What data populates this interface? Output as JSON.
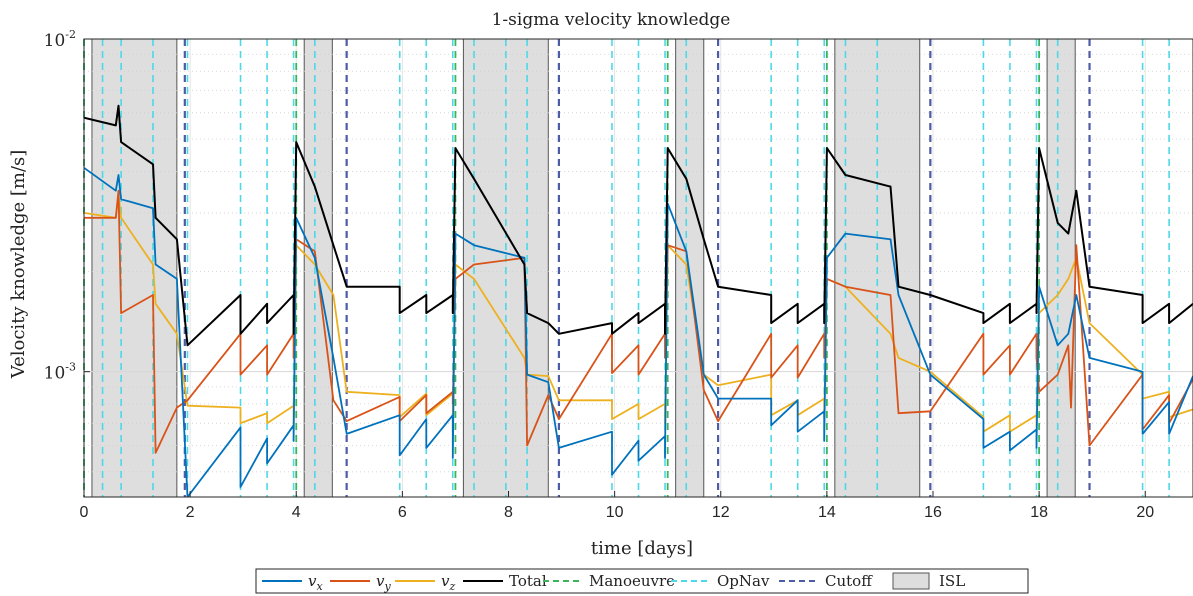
{
  "chart_data": {
    "type": "line",
    "title": "1-sigma velocity knowledge",
    "xlabel": "time [days]",
    "ylabel": "Velocity knowledge [m/s]",
    "x_ticks": [
      "0",
      "2",
      "4",
      "6",
      "8",
      "10",
      "12",
      "14",
      "16",
      "18",
      "20"
    ],
    "y_ticks": [
      {
        "base": "10",
        "exp": "-2",
        "value": 0.01
      },
      {
        "base": "10",
        "exp": "-3",
        "value": 0.001
      }
    ],
    "xlim": [
      0,
      20.9
    ],
    "ylim": [
      0.00042,
      0.01
    ],
    "y_scale": "log",
    "grid": true,
    "legend_position": "bottom-outside",
    "legend": [
      {
        "key": "vx",
        "label": "v",
        "sub": "x",
        "style": "line",
        "color": "#0072BD"
      },
      {
        "key": "vy",
        "label": "v",
        "sub": "y",
        "style": "line",
        "color": "#D95319"
      },
      {
        "key": "vz",
        "label": "v",
        "sub": "z",
        "style": "line",
        "color": "#EDB120"
      },
      {
        "key": "total",
        "label": "Total",
        "style": "line",
        "color": "#000000"
      },
      {
        "key": "manoeuvre",
        "label": "Manoeuvre",
        "style": "dashed",
        "color": "#3CB35A"
      },
      {
        "key": "opnav",
        "label": "OpNav",
        "style": "dashed",
        "color": "#4DD8E8"
      },
      {
        "key": "cutoff",
        "label": "Cutoff",
        "style": "dashed",
        "color": "#4E5BA6"
      },
      {
        "key": "isl",
        "label": "ISL",
        "style": "patch",
        "color": "#DEDEDE"
      }
    ],
    "isl_intervals": [
      [
        0.15,
        1.75
      ],
      [
        4.15,
        4.68
      ],
      [
        7.15,
        8.75
      ],
      [
        11.15,
        11.68
      ],
      [
        14.15,
        15.75
      ],
      [
        18.15,
        18.68
      ]
    ],
    "manoeuvre_times": [
      0.0,
      4.0,
      7.0,
      11.0,
      14.0,
      18.0
    ],
    "cutoff_times": [
      1.9,
      4.95,
      8.95,
      11.95,
      15.95,
      18.95
    ],
    "opnav_times": [
      0.0,
      0.35,
      0.7,
      1.3,
      1.95,
      2.95,
      3.45,
      3.95,
      4.35,
      4.95,
      5.95,
      6.45,
      6.95,
      7.35,
      7.95,
      8.35,
      8.95,
      9.95,
      10.45,
      10.95,
      11.35,
      11.95,
      12.95,
      13.45,
      13.95,
      14.35,
      14.95,
      15.95,
      16.95,
      17.45,
      17.95,
      18.35,
      18.95,
      19.95,
      20.45
    ],
    "series": [
      {
        "name": "Total",
        "color": "#000000",
        "points": [
          [
            0.0,
            0.0058
          ],
          [
            0.6,
            0.0055
          ],
          [
            0.65,
            0.0063
          ],
          [
            0.7,
            0.0049
          ],
          [
            1.3,
            0.0042
          ],
          [
            1.35,
            0.0029
          ],
          [
            1.75,
            0.0025
          ],
          [
            1.95,
            0.0012
          ],
          [
            2.95,
            0.0017
          ],
          [
            2.95,
            0.0013
          ],
          [
            3.45,
            0.0016
          ],
          [
            3.45,
            0.0014
          ],
          [
            3.95,
            0.0017
          ],
          [
            3.95,
            0.0013
          ],
          [
            4.0,
            0.0049
          ],
          [
            4.35,
            0.0036
          ],
          [
            4.7,
            0.0024
          ],
          [
            4.95,
            0.0018
          ],
          [
            5.95,
            0.0018
          ],
          [
            5.95,
            0.0015
          ],
          [
            6.45,
            0.0017
          ],
          [
            6.45,
            0.0015
          ],
          [
            6.95,
            0.0017
          ],
          [
            6.95,
            0.0015
          ],
          [
            7.0,
            0.0047
          ],
          [
            7.35,
            0.0038
          ],
          [
            8.3,
            0.0021
          ],
          [
            8.35,
            0.0015
          ],
          [
            8.75,
            0.0014
          ],
          [
            8.95,
            0.0013
          ],
          [
            9.95,
            0.0014
          ],
          [
            9.95,
            0.0013
          ],
          [
            10.45,
            0.0015
          ],
          [
            10.45,
            0.0014
          ],
          [
            10.95,
            0.0016
          ],
          [
            10.95,
            0.0013
          ],
          [
            11.0,
            0.0047
          ],
          [
            11.35,
            0.0038
          ],
          [
            11.68,
            0.0025
          ],
          [
            11.95,
            0.0018
          ],
          [
            12.95,
            0.0017
          ],
          [
            12.95,
            0.0014
          ],
          [
            13.45,
            0.0016
          ],
          [
            13.45,
            0.0014
          ],
          [
            13.95,
            0.0016
          ],
          [
            13.95,
            0.0014
          ],
          [
            14.0,
            0.0047
          ],
          [
            14.35,
            0.0039
          ],
          [
            15.2,
            0.0036
          ],
          [
            15.35,
            0.0018
          ],
          [
            15.95,
            0.0017
          ],
          [
            16.95,
            0.0015
          ],
          [
            16.95,
            0.0014
          ],
          [
            17.45,
            0.0016
          ],
          [
            17.45,
            0.0014
          ],
          [
            17.95,
            0.0016
          ],
          [
            17.95,
            0.0015
          ],
          [
            18.0,
            0.0047
          ],
          [
            18.35,
            0.0028
          ],
          [
            18.55,
            0.0026
          ],
          [
            18.7,
            0.0035
          ],
          [
            18.95,
            0.0018
          ],
          [
            19.95,
            0.0017
          ],
          [
            19.95,
            0.0014
          ],
          [
            20.45,
            0.0016
          ],
          [
            20.45,
            0.0014
          ],
          [
            20.9,
            0.0016
          ]
        ]
      },
      {
        "name": "v_x",
        "color": "#0072BD",
        "points": [
          [
            0.0,
            0.0041
          ],
          [
            0.6,
            0.0035
          ],
          [
            0.65,
            0.0039
          ],
          [
            0.7,
            0.0033
          ],
          [
            1.3,
            0.0031
          ],
          [
            1.35,
            0.0021
          ],
          [
            1.75,
            0.0019
          ],
          [
            1.95,
            0.00042
          ],
          [
            2.95,
            0.00068
          ],
          [
            2.95,
            0.00045
          ],
          [
            3.45,
            0.00063
          ],
          [
            3.45,
            0.00053
          ],
          [
            3.95,
            0.00069
          ],
          [
            3.95,
            0.00062
          ],
          [
            4.0,
            0.0029
          ],
          [
            4.35,
            0.0022
          ],
          [
            4.7,
            0.0011
          ],
          [
            4.95,
            0.00065
          ],
          [
            5.95,
            0.00074
          ],
          [
            5.95,
            0.00056
          ],
          [
            6.45,
            0.00072
          ],
          [
            6.45,
            0.00059
          ],
          [
            6.95,
            0.00074
          ],
          [
            6.95,
            0.00055
          ],
          [
            7.0,
            0.0026
          ],
          [
            7.35,
            0.0024
          ],
          [
            8.3,
            0.0022
          ],
          [
            8.35,
            0.00098
          ],
          [
            8.75,
            0.00093
          ],
          [
            8.95,
            0.00059
          ],
          [
            9.95,
            0.00066
          ],
          [
            9.95,
            0.00049
          ],
          [
            10.45,
            0.00062
          ],
          [
            10.45,
            0.00054
          ],
          [
            10.95,
            0.00064
          ],
          [
            10.95,
            0.00055
          ],
          [
            11.0,
            0.0032
          ],
          [
            11.35,
            0.0023
          ],
          [
            11.68,
            0.00098
          ],
          [
            11.95,
            0.00083
          ],
          [
            12.95,
            0.00083
          ],
          [
            12.95,
            0.00069
          ],
          [
            13.45,
            0.00082
          ],
          [
            13.45,
            0.00066
          ],
          [
            13.95,
            0.00076
          ],
          [
            13.95,
            0.00062
          ],
          [
            14.0,
            0.0022
          ],
          [
            14.35,
            0.0026
          ],
          [
            15.2,
            0.0025
          ],
          [
            15.35,
            0.0017
          ],
          [
            15.95,
            0.00098
          ],
          [
            16.95,
            0.00072
          ],
          [
            16.95,
            0.00059
          ],
          [
            17.45,
            0.00066
          ],
          [
            17.45,
            0.00058
          ],
          [
            17.95,
            0.00067
          ],
          [
            17.95,
            0.00059
          ],
          [
            18.0,
            0.0018
          ],
          [
            18.35,
            0.0012
          ],
          [
            18.55,
            0.0013
          ],
          [
            18.7,
            0.0017
          ],
          [
            18.95,
            0.0011
          ],
          [
            19.95,
            0.001
          ],
          [
            19.95,
            0.00065
          ],
          [
            20.45,
            0.00081
          ],
          [
            20.45,
            0.00065
          ],
          [
            20.9,
            0.00097
          ]
        ]
      },
      {
        "name": "v_y",
        "color": "#D95319",
        "points": [
          [
            0.0,
            0.0029
          ],
          [
            0.6,
            0.0029
          ],
          [
            0.65,
            0.0035
          ],
          [
            0.7,
            0.0015
          ],
          [
            1.3,
            0.0017
          ],
          [
            1.35,
            0.00057
          ],
          [
            1.75,
            0.00078
          ],
          [
            1.95,
            0.00082
          ],
          [
            2.95,
            0.0013
          ],
          [
            2.95,
            0.00098
          ],
          [
            3.45,
            0.0012
          ],
          [
            3.45,
            0.00098
          ],
          [
            3.95,
            0.0013
          ],
          [
            3.95,
            0.0011
          ],
          [
            4.0,
            0.0025
          ],
          [
            4.35,
            0.0023
          ],
          [
            4.7,
            0.00082
          ],
          [
            4.95,
            0.00071
          ],
          [
            5.95,
            0.00084
          ],
          [
            5.95,
            0.00071
          ],
          [
            6.45,
            0.00085
          ],
          [
            6.45,
            0.00075
          ],
          [
            6.95,
            0.00087
          ],
          [
            6.95,
            0.0008
          ],
          [
            7.0,
            0.0019
          ],
          [
            7.35,
            0.0021
          ],
          [
            8.3,
            0.0022
          ],
          [
            8.35,
            0.0006
          ],
          [
            8.75,
            0.00085
          ],
          [
            8.95,
            0.00072
          ],
          [
            9.95,
            0.0013
          ],
          [
            9.95,
            0.00099
          ],
          [
            10.45,
            0.0012
          ],
          [
            10.45,
            0.00098
          ],
          [
            10.95,
            0.0013
          ],
          [
            10.95,
            0.0011
          ],
          [
            11.0,
            0.0024
          ],
          [
            11.35,
            0.0023
          ],
          [
            11.68,
            0.00088
          ],
          [
            11.95,
            0.00071
          ],
          [
            12.95,
            0.0013
          ],
          [
            12.95,
            0.00096
          ],
          [
            13.45,
            0.0012
          ],
          [
            13.45,
            0.00096
          ],
          [
            13.95,
            0.0013
          ],
          [
            13.95,
            0.0011
          ],
          [
            14.0,
            0.0019
          ],
          [
            14.35,
            0.0018
          ],
          [
            15.2,
            0.0017
          ],
          [
            15.35,
            0.00075
          ],
          [
            15.95,
            0.00076
          ],
          [
            16.95,
            0.0013
          ],
          [
            16.95,
            0.00098
          ],
          [
            17.45,
            0.0012
          ],
          [
            17.45,
            0.00098
          ],
          [
            17.95,
            0.0013
          ],
          [
            17.95,
            0.0011
          ],
          [
            18.0,
            0.00087
          ],
          [
            18.35,
            0.00098
          ],
          [
            18.55,
            0.0012
          ],
          [
            18.6,
            0.00078
          ],
          [
            18.7,
            0.0024
          ],
          [
            18.95,
            0.0006
          ],
          [
            19.95,
            0.00098
          ],
          [
            19.95,
            0.00067
          ],
          [
            20.45,
            0.00085
          ],
          [
            20.45,
            0.0007
          ],
          [
            20.9,
            0.00095
          ]
        ]
      },
      {
        "name": "v_z",
        "color": "#EDB120",
        "points": [
          [
            0.0,
            0.003
          ],
          [
            0.6,
            0.0029
          ],
          [
            0.65,
            0.0034
          ],
          [
            0.7,
            0.0029
          ],
          [
            1.3,
            0.0021
          ],
          [
            1.35,
            0.0016
          ],
          [
            1.75,
            0.0013
          ],
          [
            1.95,
            0.00079
          ],
          [
            2.95,
            0.00078
          ],
          [
            2.95,
            0.0007
          ],
          [
            3.45,
            0.00075
          ],
          [
            3.45,
            0.0007
          ],
          [
            3.95,
            0.00079
          ],
          [
            3.95,
            0.0007
          ],
          [
            4.0,
            0.0024
          ],
          [
            4.35,
            0.0021
          ],
          [
            4.7,
            0.0017
          ],
          [
            4.95,
            0.00087
          ],
          [
            5.95,
            0.00085
          ],
          [
            5.95,
            0.00073
          ],
          [
            6.45,
            0.00086
          ],
          [
            6.45,
            0.00074
          ],
          [
            6.95,
            0.00086
          ],
          [
            6.95,
            0.00066
          ],
          [
            7.0,
            0.0021
          ],
          [
            7.35,
            0.0019
          ],
          [
            8.3,
            0.0011
          ],
          [
            8.35,
            0.00098
          ],
          [
            8.75,
            0.00097
          ],
          [
            8.95,
            0.00082
          ],
          [
            9.95,
            0.00082
          ],
          [
            9.95,
            0.00072
          ],
          [
            10.45,
            0.0008
          ],
          [
            10.45,
            0.00072
          ],
          [
            10.95,
            0.0008
          ],
          [
            10.95,
            0.0007
          ],
          [
            11.0,
            0.0024
          ],
          [
            11.35,
            0.0021
          ],
          [
            11.68,
            0.00098
          ],
          [
            11.95,
            0.00091
          ],
          [
            12.95,
            0.00098
          ],
          [
            12.95,
            0.00074
          ],
          [
            13.45,
            0.00082
          ],
          [
            13.45,
            0.00074
          ],
          [
            13.95,
            0.00083
          ],
          [
            13.95,
            0.00073
          ],
          [
            14.0,
            0.0019
          ],
          [
            14.35,
            0.0018
          ],
          [
            15.2,
            0.0013
          ],
          [
            15.35,
            0.0011
          ],
          [
            15.95,
            0.001
          ],
          [
            16.95,
            0.00073
          ],
          [
            16.95,
            0.00066
          ],
          [
            17.45,
            0.00074
          ],
          [
            17.45,
            0.00066
          ],
          [
            17.95,
            0.00074
          ],
          [
            17.95,
            0.00069
          ],
          [
            18.0,
            0.0015
          ],
          [
            18.35,
            0.0017
          ],
          [
            18.55,
            0.0019
          ],
          [
            18.7,
            0.0022
          ],
          [
            18.95,
            0.0014
          ],
          [
            19.95,
            0.00098
          ],
          [
            19.95,
            0.00083
          ],
          [
            20.45,
            0.00087
          ],
          [
            20.45,
            0.00073
          ],
          [
            20.9,
            0.00077
          ]
        ]
      }
    ]
  }
}
